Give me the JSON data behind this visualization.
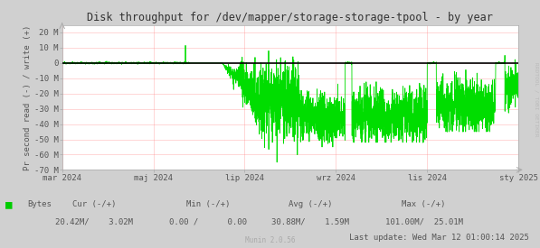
{
  "title": "Disk throughput for /dev/mapper/storage-storage-tpool - by year",
  "ylabel": "Pr second read (-) / write (+)",
  "side_label": "RRDTOOL / TOBI OETIKER",
  "ylim": [
    -70000000,
    25000000
  ],
  "yticks": [
    -70000000,
    -60000000,
    -50000000,
    -40000000,
    -30000000,
    -20000000,
    -10000000,
    0,
    10000000,
    20000000
  ],
  "ytick_labels": [
    "-70 M",
    "-60 M",
    "-50 M",
    "-40 M",
    "-30 M",
    "-20 M",
    "-10 M",
    "0",
    "10 M",
    "20 M"
  ],
  "xtick_labels": [
    "mar 2024",
    "maj 2024",
    "lip 2024",
    "wrz 2024",
    "lis 2024",
    "sty 2025"
  ],
  "bg_color": "#d0d0d0",
  "plot_bg_color": "#ffffff",
  "grid_color": "#ff8888",
  "line_color": "#00dd00",
  "zero_line_color": "#000000",
  "title_color": "#333333",
  "label_color": "#555555",
  "axis_color": "#aaaaaa",
  "legend_label": "Bytes",
  "legend_color": "#00cc00",
  "footer_update": "Last update: Wed Mar 12 01:00:14 2025",
  "munin_text": "Munin 2.0.56"
}
